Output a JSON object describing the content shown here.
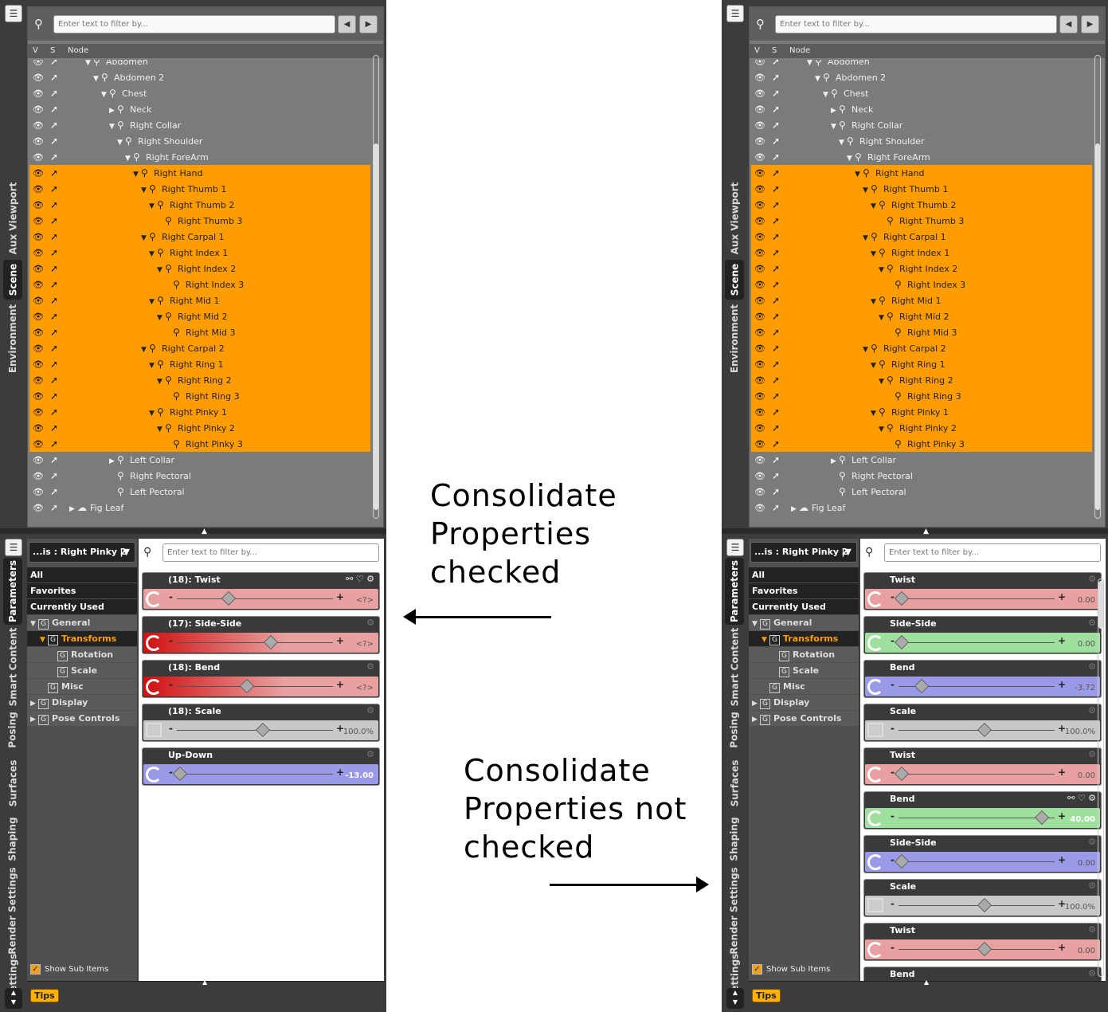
{
  "search_placeholder": "Enter text to filter by...",
  "tree_columns": {
    "v": "V",
    "s": "S",
    "node": "Node"
  },
  "top_tabs": [
    "Aux Viewport",
    "Scene",
    "Environment"
  ],
  "bottom_tabs": [
    "Parameters",
    "Smart Content",
    "Posing",
    "Surfaces",
    "Shaping",
    "Render Settings",
    "Settings"
  ],
  "tree_rows": [
    {
      "label": "Abdomen",
      "depth": 2,
      "tog": "▼",
      "sel": false
    },
    {
      "label": "Abdomen 2",
      "depth": 3,
      "tog": "▼",
      "sel": false
    },
    {
      "label": "Chest",
      "depth": 4,
      "tog": "▼",
      "sel": false
    },
    {
      "label": "Neck",
      "depth": 5,
      "tog": "▶",
      "sel": false
    },
    {
      "label": "Right Collar",
      "depth": 5,
      "tog": "▼",
      "sel": false
    },
    {
      "label": "Right Shoulder",
      "depth": 6,
      "tog": "▼",
      "sel": false
    },
    {
      "label": "Right ForeArm",
      "depth": 7,
      "tog": "▼",
      "sel": false
    },
    {
      "label": "Right Hand",
      "depth": 8,
      "tog": "▼",
      "sel": true
    },
    {
      "label": "Right Thumb 1",
      "depth": 9,
      "tog": "▼",
      "sel": true
    },
    {
      "label": "Right Thumb 2",
      "depth": 10,
      "tog": "▼",
      "sel": true
    },
    {
      "label": "Right Thumb 3",
      "depth": 11,
      "tog": "",
      "sel": true
    },
    {
      "label": "Right Carpal 1",
      "depth": 9,
      "tog": "▼",
      "sel": true
    },
    {
      "label": "Right Index 1",
      "depth": 10,
      "tog": "▼",
      "sel": true
    },
    {
      "label": "Right Index 2",
      "depth": 11,
      "tog": "▼",
      "sel": true
    },
    {
      "label": "Right Index 3",
      "depth": 12,
      "tog": "",
      "sel": true
    },
    {
      "label": "Right Mid 1",
      "depth": 10,
      "tog": "▼",
      "sel": true
    },
    {
      "label": "Right Mid 2",
      "depth": 11,
      "tog": "▼",
      "sel": true
    },
    {
      "label": "Right Mid 3",
      "depth": 12,
      "tog": "",
      "sel": true
    },
    {
      "label": "Right Carpal 2",
      "depth": 9,
      "tog": "▼",
      "sel": true
    },
    {
      "label": "Right Ring 1",
      "depth": 10,
      "tog": "▼",
      "sel": true
    },
    {
      "label": "Right Ring 2",
      "depth": 11,
      "tog": "▼",
      "sel": true
    },
    {
      "label": "Right Ring 3",
      "depth": 12,
      "tog": "",
      "sel": true
    },
    {
      "label": "Right Pinky 1",
      "depth": 10,
      "tog": "▼",
      "sel": true
    },
    {
      "label": "Right Pinky 2",
      "depth": 11,
      "tog": "▼",
      "sel": true
    },
    {
      "label": "Right Pinky 3",
      "depth": 12,
      "tog": "",
      "sel": true
    },
    {
      "label": "Left Collar",
      "depth": 5,
      "tog": "▶",
      "sel": false
    },
    {
      "label": "Right Pectoral",
      "depth": 5,
      "tog": "",
      "sel": false
    },
    {
      "label": "Left Pectoral",
      "depth": 5,
      "tog": "",
      "sel": false
    },
    {
      "label": "Fig Leaf",
      "depth": 0,
      "tog": "▶",
      "sel": false,
      "icon": "cloud-icon"
    }
  ],
  "node_select": "...is : Right Pinky 2",
  "categories": [
    {
      "label": "All",
      "kind": "top"
    },
    {
      "label": "Favorites",
      "kind": "top"
    },
    {
      "label": "Currently Used",
      "kind": "top"
    },
    {
      "label": "General",
      "kind": "grp",
      "tog": "▼",
      "g": true,
      "indent": 0
    },
    {
      "label": "Transforms",
      "kind": "sel",
      "tog": "▼",
      "g": true,
      "indent": 1
    },
    {
      "label": "Rotation",
      "kind": "grp",
      "tog": "",
      "g": true,
      "indent": 2
    },
    {
      "label": "Scale",
      "kind": "grp",
      "tog": "",
      "g": true,
      "indent": 2
    },
    {
      "label": "Misc",
      "kind": "grp",
      "tog": "",
      "g": true,
      "indent": 1
    },
    {
      "label": "Display",
      "kind": "grp",
      "tog": "▶",
      "g": true,
      "indent": 0
    },
    {
      "label": "Pose Controls",
      "kind": "grp",
      "tog": "▶",
      "g": true,
      "indent": 0
    }
  ],
  "show_sub_items": "Show Sub Items",
  "tips_label": "Tips",
  "left_props": [
    {
      "label": "(18): Twist",
      "value": "<?>",
      "color": "#e8a0a0",
      "ctl": "rot",
      "knob": 0.33,
      "fade": false,
      "opts": true
    },
    {
      "label": "(17): Side-Side",
      "value": "<?>",
      "color": "#e8a0a0",
      "ctl": "rot",
      "knob": 0.6,
      "fade": true,
      "opts": false
    },
    {
      "label": "(18): Bend",
      "value": "<?>",
      "color": "#e8a0a0",
      "ctl": "rot",
      "knob": 0.45,
      "fade": true,
      "opts": false
    },
    {
      "label": "(18): Scale",
      "value": "100.0%",
      "color": "#c8c8c8",
      "ctl": "scale",
      "knob": 0.55,
      "fade": false,
      "opts": false
    },
    {
      "label": "Up-Down",
      "value": "-13.00",
      "color": "#9a9ae8",
      "ctl": "rot",
      "knob": 0.02,
      "fade": false,
      "opts": false,
      "strong": true
    }
  ],
  "right_props": [
    {
      "label": "Twist",
      "value": "0.00",
      "color": "#e8a0a0",
      "ctl": "rot",
      "knob": 0.02,
      "opts": false
    },
    {
      "label": "Side-Side",
      "value": "0.00",
      "color": "#9fe09f",
      "ctl": "rot",
      "knob": 0.02,
      "opts": false
    },
    {
      "label": "Bend",
      "value": "-3.72",
      "color": "#9a9ae8",
      "ctl": "rot",
      "knob": 0.15,
      "opts": false
    },
    {
      "label": "Scale",
      "value": "100.0%",
      "color": "#c8c8c8",
      "ctl": "scale",
      "knob": 0.55,
      "opts": false
    },
    {
      "label": "Twist",
      "value": "0.00",
      "color": "#e8a0a0",
      "ctl": "rot",
      "knob": 0.02,
      "opts": false
    },
    {
      "label": "Bend",
      "value": "40.00",
      "color": "#9fe09f",
      "ctl": "rot",
      "knob": 0.92,
      "opts": true,
      "strong": true,
      "hl": true
    },
    {
      "label": "Side-Side",
      "value": "0.00",
      "color": "#9a9ae8",
      "ctl": "rot",
      "knob": 0.02,
      "opts": false
    },
    {
      "label": "Scale",
      "value": "100.0%",
      "color": "#c8c8c8",
      "ctl": "scale",
      "knob": 0.55,
      "opts": false
    },
    {
      "label": "Twist",
      "value": "0.00",
      "color": "#e8a0a0",
      "ctl": "rot",
      "knob": 0.55,
      "opts": false
    },
    {
      "label": "Bend",
      "value": "",
      "color": "#9fe09f",
      "ctl": "rot",
      "knob": 0.5,
      "opts": false
    }
  ],
  "annotations": {
    "checked": [
      "Consolidate",
      "Properties",
      "checked"
    ],
    "unchecked": [
      "Consolidate",
      "Properties not",
      "checked"
    ]
  }
}
